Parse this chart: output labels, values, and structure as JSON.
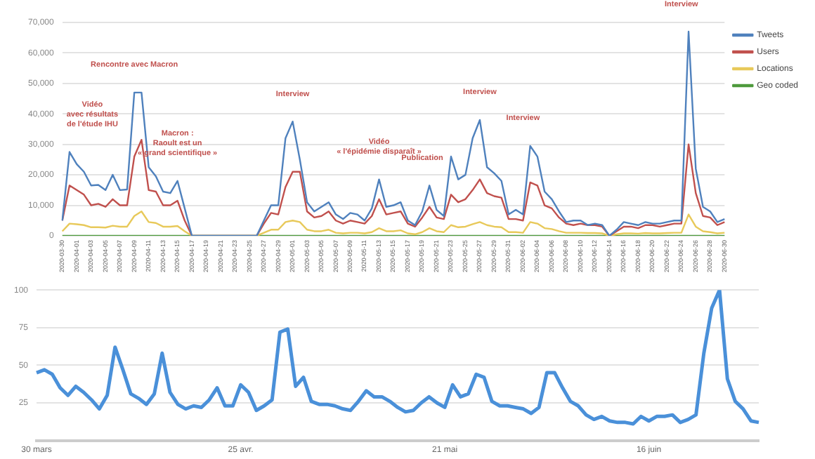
{
  "chart_data": [
    {
      "type": "line",
      "categories": [
        "2020-03-30",
        null,
        "2020-04-01",
        null,
        "2020-04-03",
        null,
        "2020-04-05",
        null,
        "2020-04-07",
        null,
        "2020-04-09",
        null,
        "2020-04-11",
        null,
        "2020-04-13",
        null,
        "2020-04-15",
        null,
        "2020-04-17",
        null,
        "2020-04-19",
        null,
        "2020-04-21",
        null,
        "2020-04-23",
        null,
        "2020-04-25",
        null,
        "2020-04-27",
        null,
        "2020-04-29",
        null,
        "2020-05-01",
        null,
        "2020-05-03",
        null,
        "2020-05-05",
        null,
        "2020-05-07",
        null,
        "2020-05-09",
        null,
        "2020-05-11",
        null,
        "2020-05-13",
        null,
        "2020-05-15",
        null,
        "2020-05-17",
        null,
        "2020-05-19",
        null,
        "2020-05-21",
        null,
        "2020-05-23",
        null,
        "2020-05-25",
        null,
        "2020-05-27",
        null,
        "2020-05-29",
        null,
        "2020-05-31",
        null,
        "2020-06-02",
        null,
        "2020-06-04",
        null,
        "2020-06-06",
        null,
        "2020-06-08",
        null,
        "2020-06-10",
        null,
        "2020-06-12",
        null,
        "2020-06-14",
        null,
        "2020-06-16",
        null,
        "2020-06-18",
        null,
        "2020-06-20",
        null,
        "2020-06-22",
        null,
        "2020-06-24",
        null,
        "2020-06-26",
        null,
        "2020-06-28",
        null,
        "2020-06-30"
      ],
      "series": [
        {
          "name": "Tweets",
          "color": "#4f81bd",
          "values": [
            5000,
            27500,
            23500,
            21000,
            16500,
            16700,
            15000,
            20000,
            15000,
            15200,
            47000,
            47000,
            22500,
            19500,
            14500,
            14000,
            18000,
            9000,
            0,
            0,
            0,
            0,
            0,
            0,
            0,
            0,
            0,
            0,
            5000,
            10000,
            10000,
            32000,
            37500,
            25000,
            11000,
            8000,
            9500,
            11000,
            7000,
            5500,
            7500,
            7000,
            5000,
            9000,
            18500,
            9500,
            10000,
            11000,
            5000,
            3500,
            8000,
            16500,
            8500,
            6500,
            26000,
            18500,
            20000,
            32000,
            38000,
            22500,
            20500,
            18000,
            7000,
            8500,
            7000,
            29500,
            26000,
            14500,
            12000,
            8000,
            4500,
            5000,
            5000,
            3500,
            4000,
            3500,
            0,
            2000,
            4500,
            4000,
            3500,
            4500,
            4000,
            4000,
            4500,
            5000,
            5000,
            67000,
            22000,
            9500,
            8000,
            4500,
            5500
          ]
        },
        {
          "name": "Users",
          "color": "#c0504d",
          "values": [
            5000,
            16500,
            15000,
            13500,
            10000,
            10500,
            9500,
            12000,
            10000,
            10000,
            26000,
            31500,
            15000,
            14500,
            10000,
            10000,
            11500,
            5000,
            0,
            0,
            0,
            0,
            0,
            0,
            0,
            0,
            0,
            0,
            4000,
            7500,
            7000,
            16000,
            21000,
            21000,
            8000,
            6000,
            6500,
            8000,
            5000,
            4000,
            5000,
            4500,
            4000,
            6500,
            12000,
            7000,
            7500,
            8000,
            4000,
            3000,
            6000,
            9500,
            6000,
            5500,
            13500,
            11000,
            12000,
            15000,
            18500,
            14000,
            13000,
            12500,
            5500,
            5500,
            5000,
            17500,
            16500,
            10000,
            9000,
            6000,
            4000,
            3500,
            4000,
            3500,
            3500,
            3000,
            0,
            1500,
            3000,
            3000,
            2500,
            3500,
            3500,
            3000,
            3500,
            4000,
            4000,
            30000,
            14000,
            6500,
            6000,
            3500,
            4500
          ]
        },
        {
          "name": "Locations",
          "color": "#e8c95a",
          "values": [
            1500,
            4000,
            3800,
            3500,
            2800,
            2800,
            2700,
            3300,
            3000,
            3000,
            6500,
            8000,
            4500,
            4200,
            3000,
            3000,
            3200,
            1500,
            0,
            0,
            0,
            0,
            0,
            0,
            0,
            0,
            0,
            0,
            1000,
            2000,
            2000,
            4500,
            5000,
            4500,
            2000,
            1500,
            1500,
            2000,
            1000,
            800,
            1000,
            1000,
            800,
            1200,
            2500,
            1500,
            1500,
            1800,
            800,
            500,
            1200,
            2500,
            1500,
            1200,
            3500,
            2800,
            3000,
            3800,
            4500,
            3500,
            3000,
            2800,
            1200,
            1200,
            1000,
            4500,
            4000,
            2500,
            2200,
            1500,
            1000,
            1000,
            1000,
            900,
            900,
            800,
            0,
            500,
            800,
            800,
            700,
            900,
            800,
            800,
            900,
            1000,
            1000,
            7000,
            3000,
            1500,
            1200,
            800,
            1000
          ]
        },
        {
          "name": "Geo coded",
          "color": "#4e9a3c",
          "values": [
            0,
            0,
            0,
            0,
            0,
            0,
            0,
            0,
            0,
            0,
            0,
            0,
            0,
            0,
            0,
            0,
            0,
            0,
            0,
            0,
            0,
            0,
            0,
            0,
            0,
            0,
            0,
            0,
            0,
            0,
            0,
            0,
            0,
            0,
            0,
            0,
            0,
            0,
            0,
            0,
            0,
            0,
            0,
            0,
            0,
            0,
            0,
            0,
            0,
            0,
            0,
            0,
            0,
            0,
            0,
            0,
            0,
            0,
            0,
            0,
            0,
            0,
            0,
            0,
            0,
            0,
            0,
            0,
            0,
            0,
            0,
            0,
            0,
            0,
            0,
            0,
            0,
            0,
            0,
            0,
            0,
            0,
            0,
            0,
            0,
            0,
            0,
            0,
            0,
            0,
            0,
            0,
            0
          ]
        }
      ],
      "ylim": [
        0,
        70000
      ],
      "yticks": [
        0,
        {
          "value": 10000,
          "label": "10,000"
        },
        {
          "value": 20000,
          "label": "20,000"
        },
        {
          "value": 30000,
          "label": "30,000"
        },
        {
          "value": 40000,
          "label": "40,000"
        },
        {
          "value": 50000,
          "label": "50,000"
        },
        {
          "value": 60000,
          "label": "60,000"
        },
        {
          "value": 70000,
          "label": "70,000"
        }
      ],
      "grid": "y",
      "legend": "right",
      "marker": "none",
      "annotations": [
        {
          "text": "Vidéo\navec résultats\nde l'étude IHU",
          "x": "2020-04-01",
          "y": 27500
        },
        {
          "text": "Rencontre avec Macron",
          "x": "2020-04-09",
          "y": 47000
        },
        {
          "text": "Macron :\nRaoult est un\n« grand scientifique »",
          "x": "2020-04-15",
          "y": 18000
        },
        {
          "text": "Interview",
          "x": "2020-05-01",
          "y": 37500
        },
        {
          "text": "Vidéo\n« l'épidémie disparaît »",
          "x": "2020-05-13",
          "y": 18500
        },
        {
          "text": "Publication",
          "x": "2020-05-19",
          "y": 16500
        },
        {
          "text": "Interview",
          "x": "2020-05-27",
          "y": 38000
        },
        {
          "text": "Interview",
          "x": "2020-06-02",
          "y": 29500
        },
        {
          "text": "Interview",
          "x": "2020-06-24",
          "y": 67000
        }
      ]
    },
    {
      "type": "line",
      "categories": [
        "30 mars",
        null,
        null,
        null,
        null,
        null,
        null,
        null,
        null,
        null,
        null,
        null,
        null,
        null,
        null,
        null,
        null,
        null,
        null,
        null,
        null,
        null,
        null,
        null,
        null,
        null,
        "25 avr.",
        null,
        null,
        null,
        null,
        null,
        null,
        null,
        null,
        null,
        null,
        null,
        null,
        null,
        null,
        null,
        null,
        null,
        null,
        null,
        null,
        null,
        null,
        null,
        null,
        null,
        "21 mai",
        null,
        null,
        null,
        null,
        null,
        null,
        null,
        null,
        null,
        null,
        null,
        null,
        null,
        null,
        null,
        null,
        null,
        null,
        null,
        null,
        null,
        null,
        null,
        null,
        null,
        "16 juin",
        null,
        null,
        null,
        null,
        null,
        null,
        null,
        null,
        null,
        null,
        null,
        null,
        null,
        null
      ],
      "series": [
        {
          "color": "#4a90d9",
          "values": [
            45,
            47,
            44,
            35,
            30,
            36,
            32,
            27,
            21,
            30,
            62,
            47,
            31,
            28,
            24,
            31,
            58,
            32,
            24,
            21,
            23,
            22,
            27,
            35,
            23,
            23,
            37,
            32,
            20,
            23,
            27,
            72,
            74,
            36,
            42,
            26,
            24,
            24,
            23,
            21,
            20,
            26,
            33,
            29,
            29,
            26,
            22,
            19,
            20,
            25,
            29,
            25,
            22,
            37,
            29,
            31,
            44,
            42,
            26,
            23,
            23,
            22,
            21,
            18,
            22,
            45,
            45,
            35,
            26,
            23,
            17,
            14,
            16,
            13,
            12,
            12,
            11,
            16,
            13,
            16,
            16,
            17,
            12,
            14,
            17,
            58,
            88,
            100,
            41,
            26,
            21,
            13,
            12
          ]
        }
      ],
      "ylim": [
        0,
        100
      ],
      "yticks": [
        {
          "value": 0,
          "label": null
        },
        25,
        50,
        75,
        100
      ],
      "grid": "y",
      "marker": "none"
    }
  ]
}
